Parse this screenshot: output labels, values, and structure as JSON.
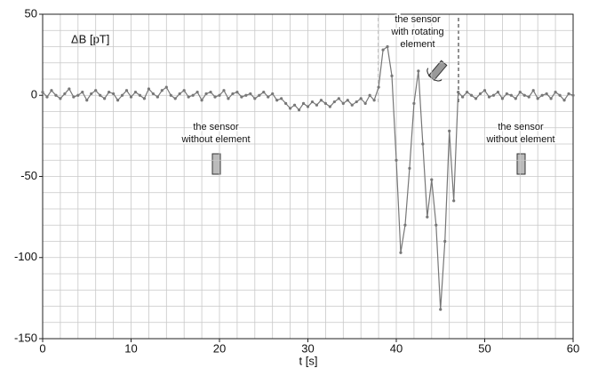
{
  "chart_data": {
    "type": "line",
    "y_label": "ΔB [pT]",
    "x_label": "t [s]",
    "xlim": [
      0,
      60
    ],
    "ylim": [
      -150,
      50
    ],
    "xticks": [
      0,
      10,
      20,
      30,
      40,
      50,
      60
    ],
    "yticks": [
      -150,
      -100,
      -50,
      0,
      50
    ],
    "xgrid": [
      0,
      2,
      4,
      6,
      8,
      10,
      12,
      14,
      16,
      18,
      20,
      22,
      24,
      26,
      28,
      30,
      32,
      34,
      36,
      38,
      40,
      42,
      44,
      46,
      48,
      50,
      52,
      54,
      56,
      58,
      60
    ],
    "ygrid": [
      -150,
      -140,
      -130,
      -120,
      -110,
      -100,
      -90,
      -80,
      -70,
      -60,
      -50,
      -40,
      -30,
      -20,
      -10,
      0,
      10,
      20,
      30,
      40,
      50
    ],
    "annotations": [
      {
        "lines": [
          "the sensor",
          "without element"
        ]
      },
      {
        "lines": [
          "the sensor",
          "with rotating",
          "element"
        ]
      },
      {
        "lines": [
          "the sensor",
          "without element"
        ]
      }
    ],
    "series": [
      {
        "name": "ΔB",
        "color": "#777777",
        "x": [
          0,
          0.5,
          1,
          1.5,
          2,
          2.5,
          3,
          3.5,
          4,
          4.5,
          5,
          5.5,
          6,
          6.5,
          7,
          7.5,
          8,
          8.5,
          9,
          9.5,
          10,
          10.5,
          11,
          11.5,
          12,
          12.5,
          13,
          13.5,
          14,
          14.5,
          15,
          15.5,
          16,
          16.5,
          17,
          17.5,
          18,
          18.5,
          19,
          19.5,
          20,
          20.5,
          21,
          21.5,
          22,
          22.5,
          23,
          23.5,
          24,
          24.5,
          25,
          25.5,
          26,
          26.5,
          27,
          27.5,
          28,
          28.5,
          29,
          29.5,
          30,
          30.5,
          31,
          31.5,
          32,
          32.5,
          33,
          33.5,
          34,
          34.5,
          35,
          35.5,
          36,
          36.5,
          37,
          37.5,
          38,
          38.5,
          39,
          39.5,
          40,
          40.5,
          41,
          41.5,
          42,
          42.5,
          43,
          43.5,
          44,
          44.5,
          45,
          45.5,
          46,
          46.5,
          47,
          47.5,
          48,
          48.5,
          49,
          49.5,
          50,
          50.5,
          51,
          51.5,
          52,
          52.5,
          53,
          53.5,
          54,
          54.5,
          55,
          55.5,
          56,
          56.5,
          57,
          57.5,
          58,
          58.5,
          59,
          59.5,
          60
        ],
        "values": [
          2,
          -1,
          3,
          0,
          -2,
          1,
          4,
          -1,
          0,
          2,
          -3,
          1,
          3,
          0,
          -2,
          2,
          1,
          -3,
          0,
          3,
          -1,
          2,
          0,
          -2,
          4,
          1,
          -1,
          3,
          5,
          0,
          -2,
          1,
          3,
          -1,
          0,
          2,
          -3,
          1,
          2,
          -1,
          0,
          3,
          -2,
          1,
          2,
          -1,
          0,
          1,
          -2,
          0,
          2,
          -1,
          1,
          -3,
          -2,
          -5,
          -8,
          -6,
          -9,
          -5,
          -7,
          -4,
          -6,
          -3,
          -5,
          -7,
          -4,
          -2,
          -5,
          -3,
          -6,
          -4,
          -2,
          -5,
          0,
          -3,
          5,
          28,
          30,
          12,
          -40,
          -97,
          -80,
          -45,
          -5,
          15,
          -30,
          -75,
          -52,
          -80,
          -132,
          -90,
          -22,
          -65,
          2,
          -1,
          2,
          0,
          -2,
          1,
          3,
          -1,
          0,
          2,
          -2,
          1,
          0,
          -2,
          2,
          0,
          -1,
          3,
          -2,
          0,
          1,
          -2,
          2,
          0,
          -3,
          1,
          0
        ]
      }
    ]
  }
}
